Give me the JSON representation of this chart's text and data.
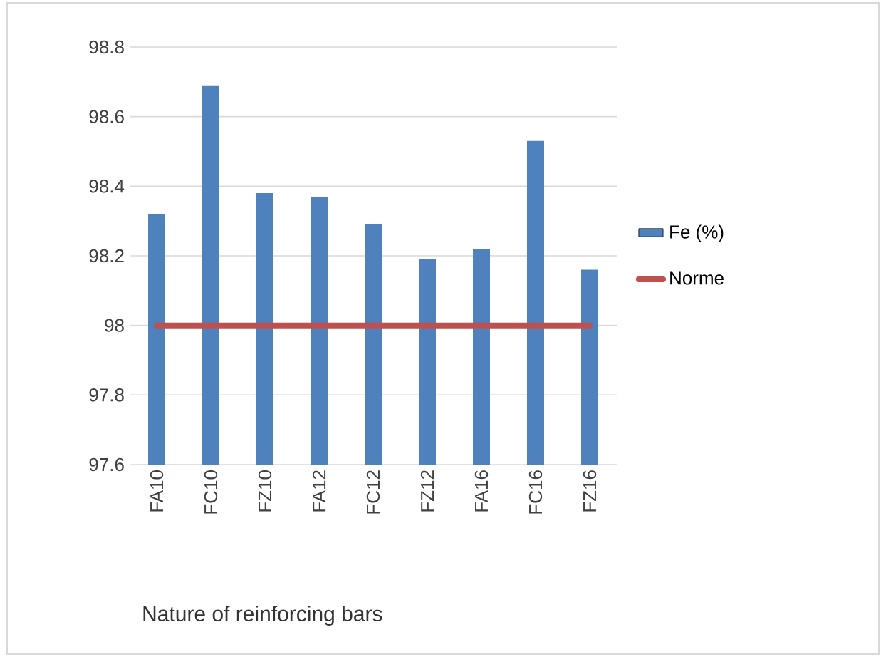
{
  "chart_data": {
    "type": "bar",
    "xlabel": "Nature of reinforcing bars",
    "categories": [
      "FA10",
      "FC10",
      "FZ10",
      "FA12",
      "FC12",
      "FZ12",
      "FA16",
      "FC16",
      "FZ16"
    ],
    "series": [
      {
        "name": "Fe (%)",
        "color": "#4f81bd",
        "values": [
          98.32,
          98.69,
          98.38,
          98.37,
          98.29,
          98.19,
          98.22,
          98.53,
          98.16
        ]
      },
      {
        "name": "Norme",
        "type": "line",
        "color": "#c0504d",
        "values": [
          98,
          98,
          98,
          98,
          98,
          98,
          98,
          98,
          98
        ]
      }
    ],
    "ylim": [
      97.6,
      98.8
    ],
    "yticks": [
      97.6,
      97.8,
      98,
      98.2,
      98.4,
      98.6,
      98.8
    ],
    "grid": "y",
    "legend": "right"
  }
}
